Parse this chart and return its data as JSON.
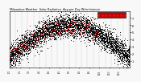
{
  "title": "Milwaukee Weather  Solar Radiation",
  "subtitle": "Avg per Day W/m²/minute",
  "bg_color": "#f8f8f8",
  "plot_bg": "#f8f8f8",
  "grid_color": "#aaaaaa",
  "dot_color_black": "#000000",
  "dot_color_red": "#cc0000",
  "legend_box_color": "#cc0000",
  "legend_box_outline": "#000000",
  "ylim": [
    0,
    8
  ],
  "ytick_values": [
    1,
    2,
    3,
    4,
    5,
    6,
    7
  ],
  "n_years": 10,
  "n_days": 365,
  "seed": 7,
  "n_vertical_grids": 20,
  "dot_size": 0.5
}
